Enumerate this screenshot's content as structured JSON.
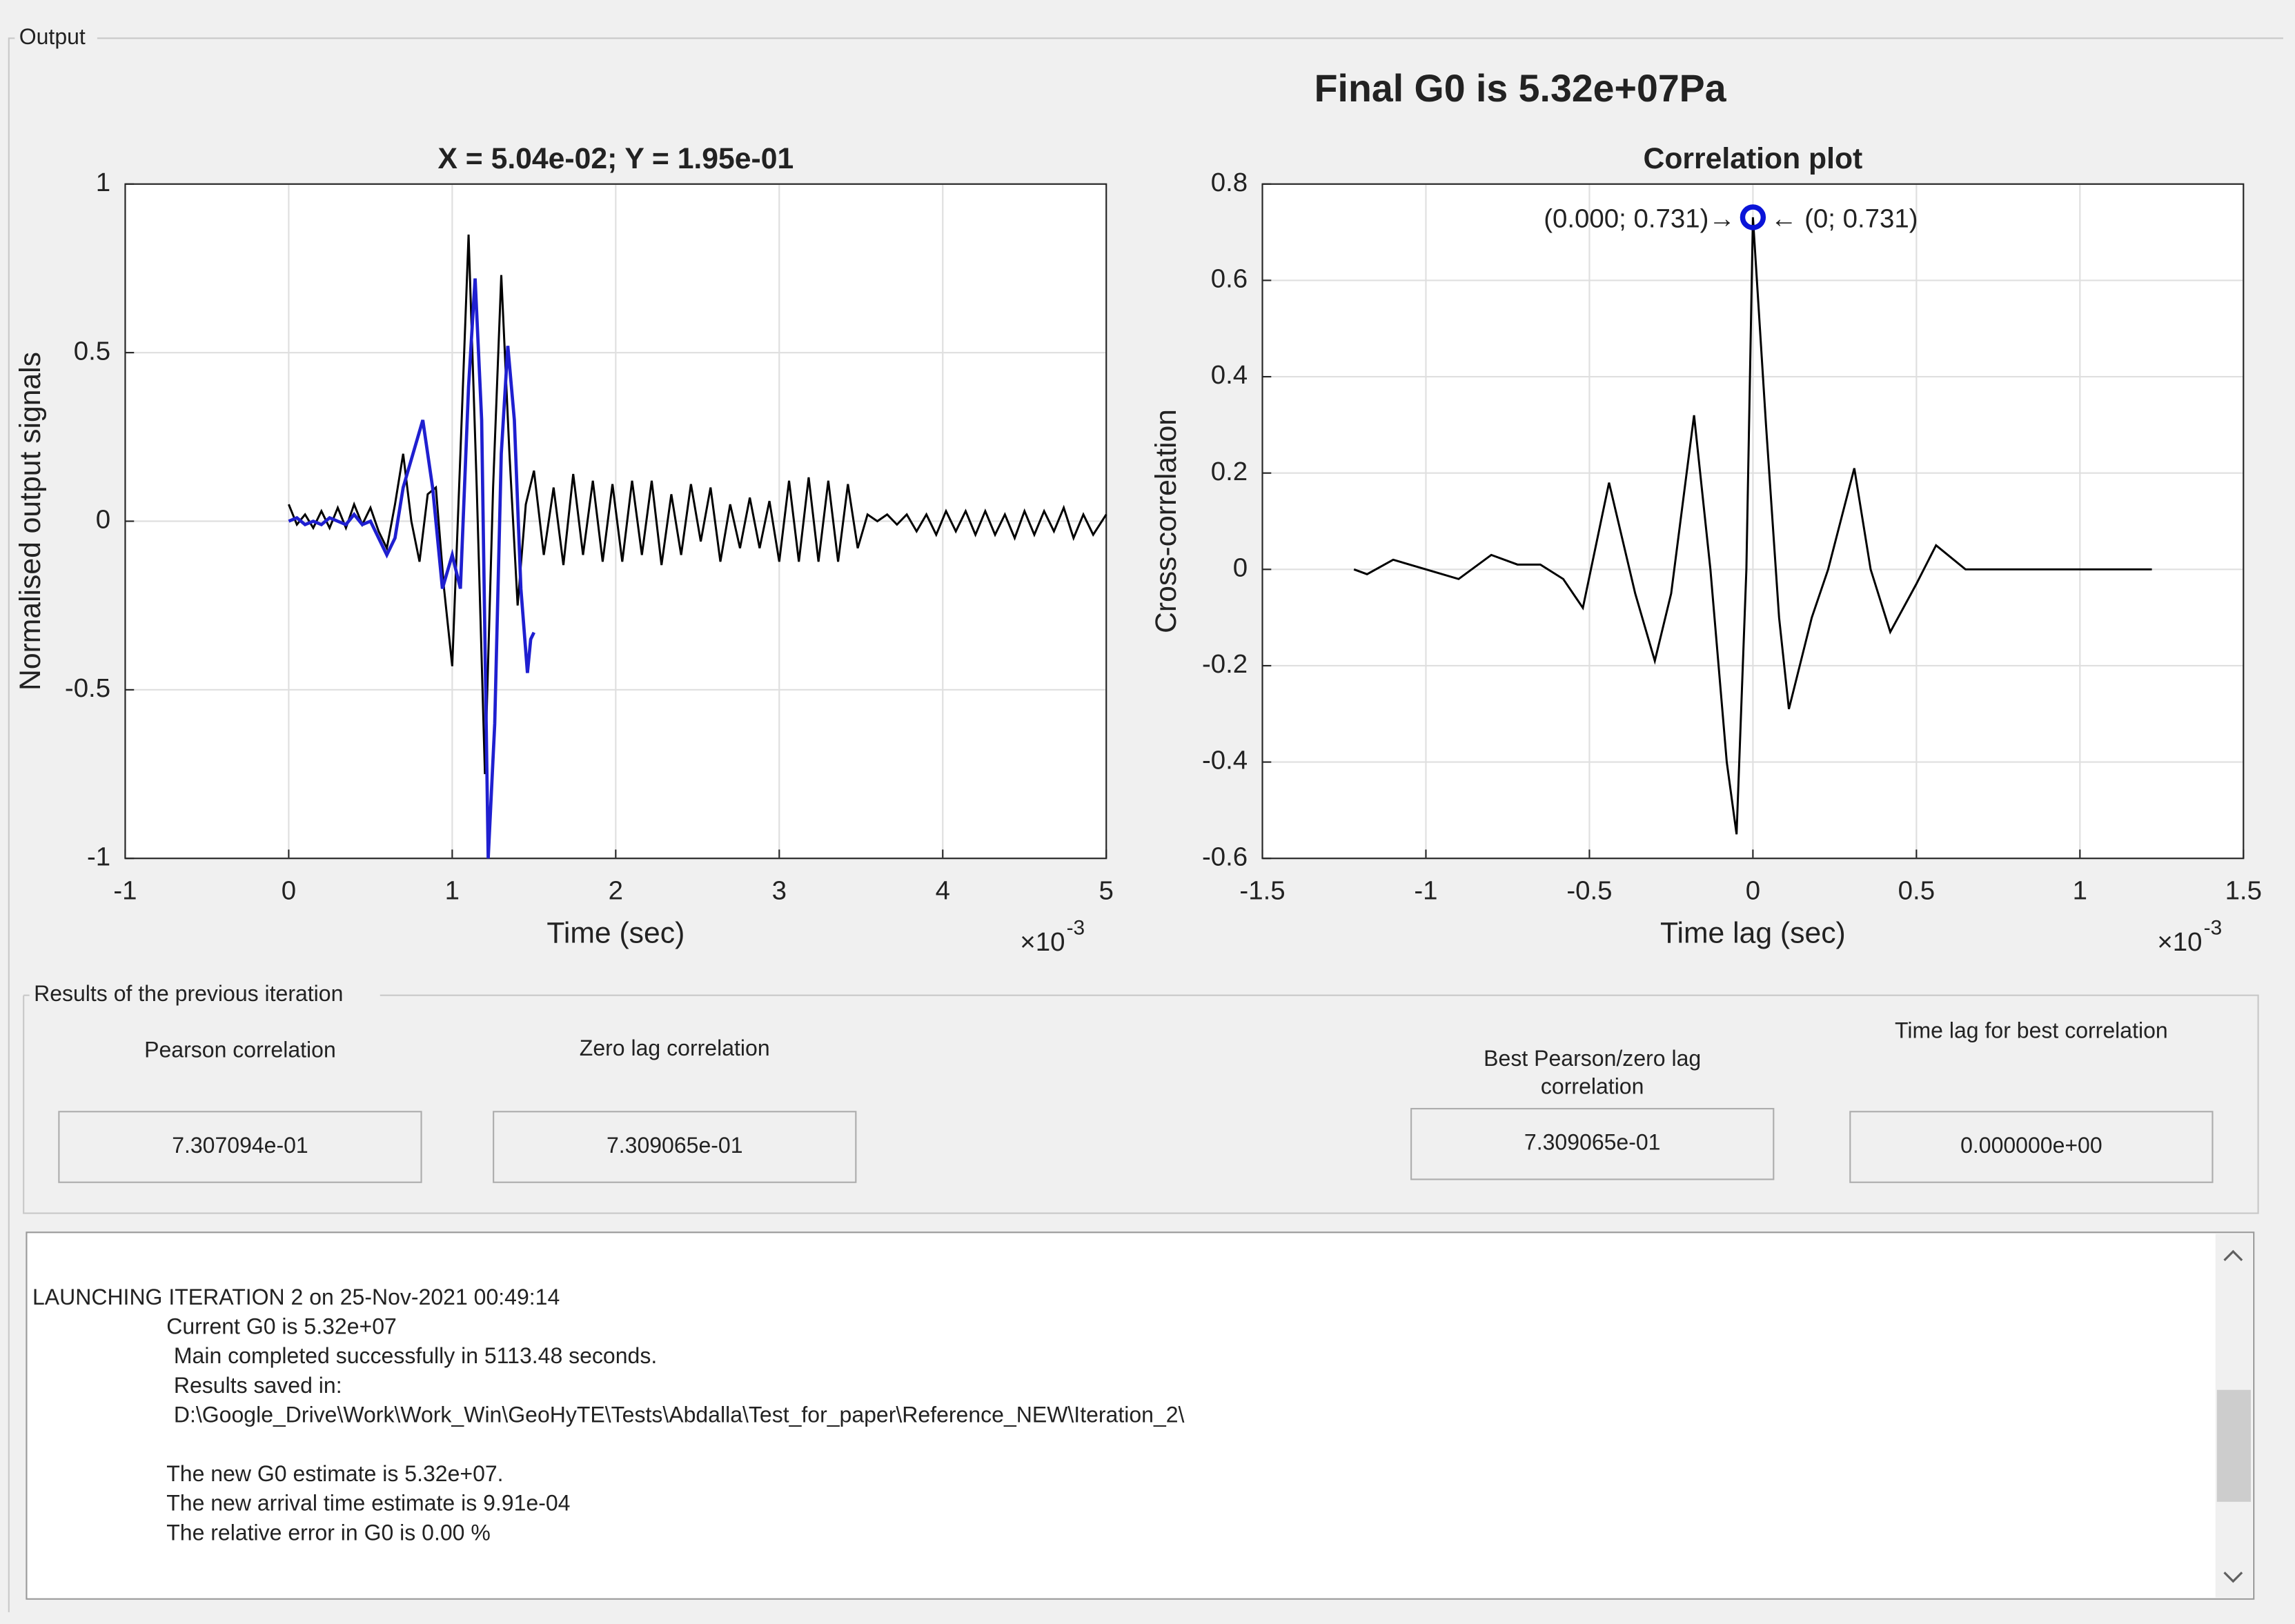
{
  "panel_title": "Output",
  "main_title": "Final G0 is 5.32e+07Pa",
  "chart_data": [
    {
      "type": "line",
      "title": "X = 5.04e-02; Y = 1.95e-01",
      "xlabel": "Time (sec)",
      "ylabel": "Normalised output signals",
      "xlim": [
        -1,
        5
      ],
      "xticks": [
        -1,
        0,
        1,
        2,
        3,
        4,
        5
      ],
      "ylim": [
        -1,
        1
      ],
      "yticks": [
        -1,
        -0.5,
        0,
        0.5,
        1
      ],
      "grid": true,
      "x_multiplier": {
        "base": "×10",
        "exponent": "-3"
      },
      "series": [
        {
          "color": "#000000",
          "x": [
            0,
            0.05,
            0.1,
            0.15,
            0.2,
            0.25,
            0.3,
            0.35,
            0.4,
            0.45,
            0.5,
            0.55,
            0.6,
            0.65,
            0.7,
            0.75,
            0.8,
            0.85,
            0.9,
            0.95,
            1.0,
            1.05,
            1.1,
            1.15,
            1.2,
            1.25,
            1.3,
            1.35,
            1.4,
            1.45,
            1.5,
            1.56,
            1.62,
            1.68,
            1.74,
            1.8,
            1.86,
            1.92,
            1.98,
            2.04,
            2.1,
            2.16,
            2.22,
            2.28,
            2.34,
            2.4,
            2.46,
            2.52,
            2.58,
            2.64,
            2.7,
            2.76,
            2.82,
            2.88,
            2.94,
            3.0,
            3.06,
            3.12,
            3.18,
            3.24,
            3.3,
            3.36,
            3.42,
            3.48,
            3.54,
            3.6,
            3.66,
            3.72,
            3.78,
            3.84,
            3.9,
            3.96,
            4.02,
            4.08,
            4.14,
            4.2,
            4.26,
            4.32,
            4.38,
            4.44,
            4.5,
            4.56,
            4.62,
            4.68,
            4.74,
            4.8,
            4.86,
            4.92,
            5.0
          ],
          "values": [
            0.05,
            -0.01,
            0.02,
            -0.02,
            0.03,
            -0.02,
            0.04,
            -0.02,
            0.05,
            -0.01,
            0.04,
            -0.03,
            -0.08,
            0.05,
            0.2,
            0.0,
            -0.12,
            0.08,
            0.1,
            -0.2,
            -0.43,
            0.2,
            0.85,
            0.1,
            -0.75,
            0.1,
            0.73,
            0.2,
            -0.25,
            0.05,
            0.15,
            -0.1,
            0.1,
            -0.13,
            0.14,
            -0.1,
            0.12,
            -0.12,
            0.11,
            -0.12,
            0.12,
            -0.1,
            0.12,
            -0.13,
            0.08,
            -0.1,
            0.11,
            -0.06,
            0.1,
            -0.12,
            0.05,
            -0.08,
            0.07,
            -0.08,
            0.06,
            -0.12,
            0.12,
            -0.12,
            0.13,
            -0.12,
            0.12,
            -0.12,
            0.11,
            -0.08,
            0.02,
            0.0,
            0.02,
            -0.01,
            0.02,
            -0.03,
            0.02,
            -0.04,
            0.03,
            -0.03,
            0.03,
            -0.04,
            0.03,
            -0.04,
            0.02,
            -0.05,
            0.03,
            -0.04,
            0.03,
            -0.03,
            0.04,
            -0.05,
            0.02,
            -0.04,
            0.02
          ]
        },
        {
          "color": "#1f1fd0",
          "x": [
            0,
            0.05,
            0.1,
            0.15,
            0.2,
            0.25,
            0.3,
            0.35,
            0.4,
            0.45,
            0.5,
            0.55,
            0.6,
            0.65,
            0.7,
            0.76,
            0.82,
            0.88,
            0.94,
            1.0,
            1.05,
            1.1,
            1.14,
            1.18,
            1.22,
            1.26,
            1.3,
            1.34,
            1.38,
            1.42,
            1.46,
            1.48,
            1.5
          ],
          "values": [
            0.0,
            0.01,
            -0.01,
            0.0,
            -0.01,
            0.01,
            0.0,
            -0.01,
            0.02,
            -0.01,
            0.0,
            -0.05,
            -0.1,
            -0.05,
            0.1,
            0.2,
            0.3,
            0.1,
            -0.2,
            -0.1,
            -0.2,
            0.4,
            0.72,
            0.3,
            -1.0,
            -0.6,
            0.2,
            0.52,
            0.3,
            -0.2,
            -0.45,
            -0.35,
            -0.33
          ]
        }
      ]
    },
    {
      "type": "line",
      "title": "Correlation plot",
      "xlabel": "Time lag (sec)",
      "ylabel": "Cross-correlation",
      "xlim": [
        -1.5,
        1.5
      ],
      "xticks": [
        -1.5,
        -1,
        -0.5,
        0,
        0.5,
        1,
        1.5
      ],
      "ylim": [
        -0.6,
        0.8
      ],
      "yticks": [
        -0.6,
        -0.4,
        -0.2,
        0,
        0.2,
        0.4,
        0.6,
        0.8
      ],
      "grid": true,
      "x_multiplier": {
        "base": "×10",
        "exponent": "-3"
      },
      "series": [
        {
          "color": "#000000",
          "x": [
            -1.22,
            -1.18,
            -1.1,
            -1.0,
            -0.9,
            -0.8,
            -0.72,
            -0.65,
            -0.58,
            -0.52,
            -0.44,
            -0.36,
            -0.3,
            -0.25,
            -0.18,
            -0.13,
            -0.08,
            -0.05,
            -0.02,
            0.0,
            0.04,
            0.08,
            0.11,
            0.18,
            0.23,
            0.31,
            0.36,
            0.42,
            0.5,
            0.56,
            0.65,
            0.8,
            1.0,
            1.22
          ],
          "values": [
            0,
            -0.01,
            0.02,
            0.0,
            -0.02,
            0.03,
            0.01,
            0.01,
            -0.02,
            -0.08,
            0.18,
            -0.05,
            -0.19,
            -0.05,
            0.32,
            0.0,
            -0.4,
            -0.55,
            0.0,
            0.731,
            0.3,
            -0.1,
            -0.29,
            -0.1,
            0.0,
            0.21,
            0.0,
            -0.13,
            -0.03,
            0.05,
            0.0,
            0.0,
            0.0,
            0.0
          ]
        }
      ],
      "marker": {
        "x": 0,
        "y": 0.731,
        "color": "#0a14d8"
      },
      "annotations": [
        "(0.000; 0.731)→",
        "← (0; 0.731)"
      ]
    }
  ],
  "results": {
    "title": "Results of the previous iteration",
    "fields": [
      {
        "label": "Pearson correlation",
        "value": "7.307094e-01"
      },
      {
        "label": "Zero lag correlation",
        "value": "7.309065e-01"
      },
      {
        "label": "Best Pearson/zero lag correlation",
        "value": "7.309065e-01"
      },
      {
        "label": "Time lag for best correlation",
        "value": "0.000000e+00"
      }
    ]
  },
  "log": [
    "LAUNCHING ITERATION 2 on 25-Nov-2021 00:49:14",
    "Current G0 is 5.32e+07",
    "Main completed successfully in 5113.48 seconds.",
    "Results saved in:",
    "D:\\Google_Drive\\Work\\Work_Win\\GeoHyTE\\Tests\\Abdalla\\Test_for_paper\\Reference_NEW\\Iteration_2\\",
    "The new G0 estimate is 5.32e+07.",
    "The new arrival time estimate is 9.91e-04",
    "The relative error in G0 is 0.00 %"
  ]
}
